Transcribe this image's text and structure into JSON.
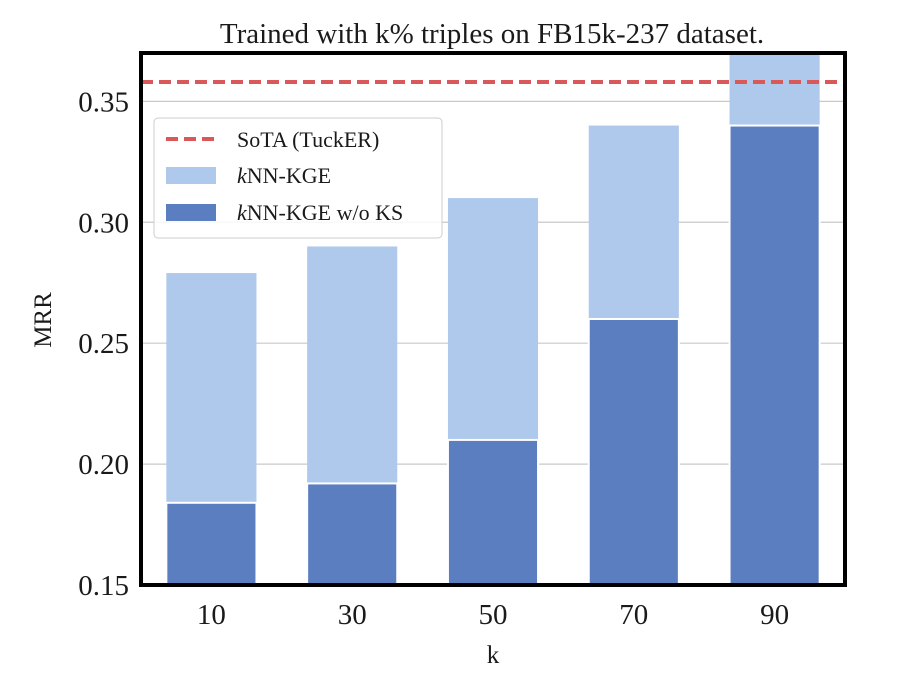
{
  "chart_data": {
    "type": "bar",
    "title": "Trained with k% triples on FB15k-237 dataset.",
    "xlabel": "k",
    "ylabel": "MRR",
    "categories": [
      "10",
      "30",
      "50",
      "70",
      "90"
    ],
    "ylim": [
      0.15,
      0.37
    ],
    "yticks": [
      0.15,
      0.2,
      0.25,
      0.3,
      0.35
    ],
    "ytick_labels": [
      "0.15",
      "0.20",
      "0.25",
      "0.30",
      "0.35"
    ],
    "grid": true,
    "series": [
      {
        "name": "kNN-KGE",
        "legend_prefix": "k",
        "legend_rest": "NN-KGE",
        "values": [
          0.279,
          0.29,
          0.31,
          0.34,
          0.37
        ],
        "color": "#aec9ec"
      },
      {
        "name": "kNN-KGE w/o KS",
        "legend_prefix": "k",
        "legend_rest": "NN-KGE w/o KS",
        "values": [
          0.184,
          0.192,
          0.21,
          0.26,
          0.34
        ],
        "color": "#5a7ebf"
      }
    ],
    "reference_line": {
      "name": "SoTA (TuckER)",
      "value": 0.358,
      "color": "#d9585a",
      "style": "dashed"
    },
    "legend_position": "upper-left"
  }
}
